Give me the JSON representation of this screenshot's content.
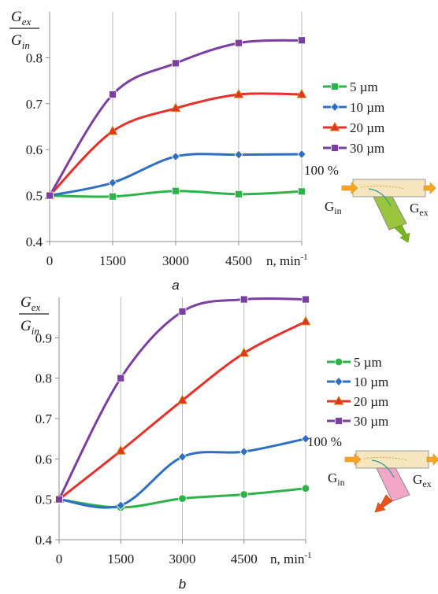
{
  "chart_data": [
    {
      "type": "line",
      "panel_label": "a",
      "ylabel_num": "G",
      "ylabel_num_sub": "ex",
      "ylabel_den": "G",
      "ylabel_den_sub": "in",
      "xlabel": "n, min",
      "xlabel_sup": "-1",
      "x": [
        0,
        1500,
        3000,
        4500,
        6000
      ],
      "x_tick_labels": [
        "0",
        "1500",
        "3000",
        "4500"
      ],
      "ylim": [
        0.4,
        0.9
      ],
      "y_ticks": [
        0.4,
        0.5,
        0.6,
        0.7,
        0.8
      ],
      "y_tick_labels": [
        "0.4",
        "0.5",
        "0.6",
        "0.7",
        "0.8"
      ],
      "grid": "vertical",
      "legend": "right",
      "series": [
        {
          "name": "5 µm",
          "color": "#2db34a",
          "marker": "square",
          "values": [
            0.5,
            0.498,
            0.51,
            0.503,
            0.509
          ]
        },
        {
          "name": "10 µm",
          "color": "#2e6fc4",
          "marker": "diamond",
          "values": [
            0.5,
            0.528,
            0.585,
            0.589,
            0.59
          ]
        },
        {
          "name": "20 µm",
          "color": "#e6302b",
          "marker": "triangle",
          "values": [
            0.5,
            0.64,
            0.69,
            0.72,
            0.72
          ]
        },
        {
          "name": "30 µm",
          "color": "#7a3fa0",
          "marker": "square",
          "values": [
            0.5,
            0.72,
            0.788,
            0.832,
            0.838
          ]
        }
      ],
      "inset": {
        "percent": "100 %",
        "in_label": "G",
        "in_sub": "in",
        "ex_label": "G",
        "ex_sub": "ex",
        "branch_color": "#9bc53d",
        "arrow_color": "#7ab51d"
      }
    },
    {
      "type": "line",
      "panel_label": "b",
      "ylabel_num": "G",
      "ylabel_num_sub": "ex",
      "ylabel_den": "G",
      "ylabel_den_sub": "in",
      "xlabel": "n, min",
      "xlabel_sup": "-1",
      "x": [
        0,
        1500,
        3000,
        4500,
        6000
      ],
      "x_tick_labels": [
        "0",
        "1500",
        "3000",
        "4500"
      ],
      "ylim": [
        0.4,
        1.0
      ],
      "y_ticks": [
        0.4,
        0.5,
        0.6,
        0.7,
        0.8,
        0.9
      ],
      "y_tick_labels": [
        "0.4",
        "0.5",
        "0.6",
        "0.7",
        "0.8",
        "0.9"
      ],
      "grid": "vertical",
      "legend": "right",
      "series": [
        {
          "name": "5 µm",
          "color": "#2db34a",
          "marker": "circle",
          "values": [
            0.5,
            0.48,
            0.502,
            0.512,
            0.527
          ]
        },
        {
          "name": "10 µm",
          "color": "#2e6fc4",
          "marker": "diamond",
          "values": [
            0.5,
            0.485,
            0.605,
            0.618,
            0.65
          ]
        },
        {
          "name": "20 µm",
          "color": "#e6302b",
          "marker": "triangle",
          "values": [
            0.5,
            0.62,
            0.745,
            0.862,
            0.94
          ]
        },
        {
          "name": "30 µm",
          "color": "#7a3fa0",
          "marker": "square",
          "values": [
            0.5,
            0.8,
            0.965,
            0.995,
            0.995
          ]
        }
      ],
      "inset": {
        "percent": "100 %",
        "in_label": "G",
        "in_sub": "in",
        "ex_label": "G",
        "ex_sub": "ex",
        "branch_color": "#f2a7c8",
        "arrow_color": "#e8531f"
      }
    }
  ]
}
